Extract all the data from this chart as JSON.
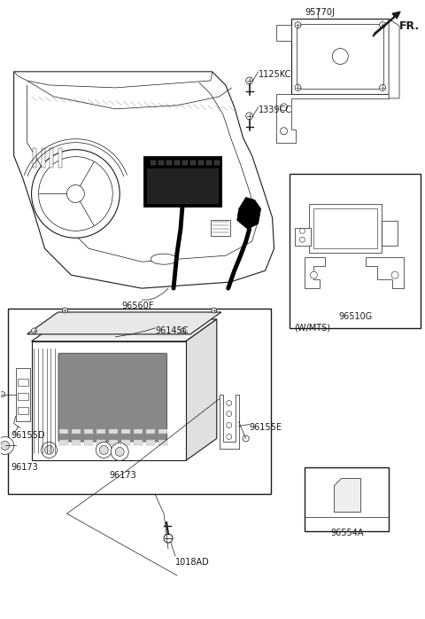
{
  "bg_color": "#ffffff",
  "line_color": "#1a1a1a",
  "figsize": [
    4.8,
    6.98
  ],
  "dpi": 100,
  "labels": {
    "FR": "FR.",
    "part_95770J": "95770J",
    "part_1125KC": "1125KC",
    "part_1339CC": "1339CC",
    "part_96560F": "96560F",
    "part_96155D": "96155D",
    "part_96145C": "96145C",
    "part_96155E": "96155E",
    "part_96173_left": "96173",
    "part_96173_bottom": "96173",
    "part_1018AD": "1018AD",
    "part_96510G": "96510G",
    "part_96554A": "96554A",
    "wmts": "(W/MTS)"
  }
}
